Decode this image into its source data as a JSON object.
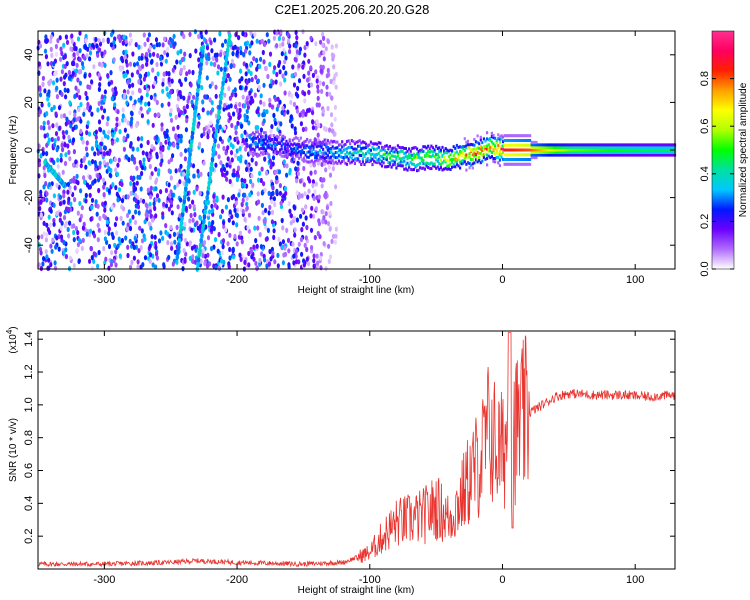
{
  "figure": {
    "title": "C2E1.2025.206.20.20.G28"
  },
  "chart_data": [
    {
      "type": "heatmap",
      "xlabel": "Height of straight line (km)",
      "ylabel": "Frequency (Hz)",
      "xlim": [
        -350,
        130
      ],
      "ylim": [
        -50,
        50
      ],
      "xticks": [
        -300,
        -200,
        -100,
        0,
        100
      ],
      "yticks": [
        -40,
        -20,
        0,
        20,
        40
      ],
      "grid": false,
      "colorbar": {
        "label": "Normalized spectral amplitude",
        "range": [
          0.0,
          1.0
        ],
        "ticks": [
          0.0,
          0.2,
          0.4,
          0.6,
          0.8
        ],
        "colormap": [
          "#ffffff",
          "#b06cff",
          "#6a00ff",
          "#0018ff",
          "#00c8ff",
          "#00e0a0",
          "#00ff00",
          "#b0ff00",
          "#ffff00",
          "#ffa000",
          "#ff2000",
          "#ff0060",
          "#ff3090"
        ]
      },
      "ridge": {
        "height_km": [
          -190,
          -170,
          -150,
          -130,
          -110,
          -90,
          -70,
          -50,
          -40,
          -30,
          -20,
          -10,
          0,
          20,
          50,
          80,
          110,
          130
        ],
        "frequency_hz": [
          3,
          2,
          0,
          -1,
          -1,
          -2,
          -4,
          -3,
          -4,
          -2,
          -1,
          1,
          0,
          0,
          0,
          0,
          0,
          0
        ],
        "amplitude": [
          0.3,
          0.25,
          0.3,
          0.35,
          0.4,
          0.45,
          0.5,
          0.55,
          0.6,
          0.7,
          0.75,
          0.8,
          0.85,
          0.8,
          0.55,
          0.5,
          0.45,
          0.45
        ]
      },
      "noise_region_km": [
        -350,
        -130
      ]
    },
    {
      "type": "line",
      "xlabel": "Height of straight line (km)",
      "ylabel": "SNR (10 * v/v)",
      "y_multiplier": "(x10",
      "y_exponent": "4",
      "xlim": [
        -350,
        130
      ],
      "ylim": [
        0,
        1.45
      ],
      "xticks": [
        -300,
        -200,
        -100,
        0,
        100
      ],
      "yticks": [
        0.2,
        0.4,
        0.6,
        0.8,
        1.0,
        1.2,
        1.4
      ],
      "color": "#e8332e",
      "grid": false,
      "series": [
        {
          "x": [
            -350,
            -300,
            -250,
            -230,
            -200,
            -150,
            -120,
            -100,
            -90,
            -80,
            -70,
            -60,
            -50,
            -40,
            -30,
            -25,
            -20,
            -15,
            -10,
            -5,
            0,
            5,
            10,
            15,
            20,
            30,
            40,
            50,
            70,
            90,
            110,
            130
          ],
          "y": [
            0.03,
            0.03,
            0.04,
            0.05,
            0.04,
            0.03,
            0.04,
            0.1,
            0.2,
            0.28,
            0.3,
            0.32,
            0.38,
            0.3,
            0.45,
            0.55,
            0.62,
            0.7,
            0.85,
            0.75,
            0.7,
            0.9,
            0.85,
            0.9,
            0.95,
            1.0,
            1.05,
            1.07,
            1.06,
            1.06,
            1.05,
            1.06
          ]
        }
      ]
    }
  ]
}
